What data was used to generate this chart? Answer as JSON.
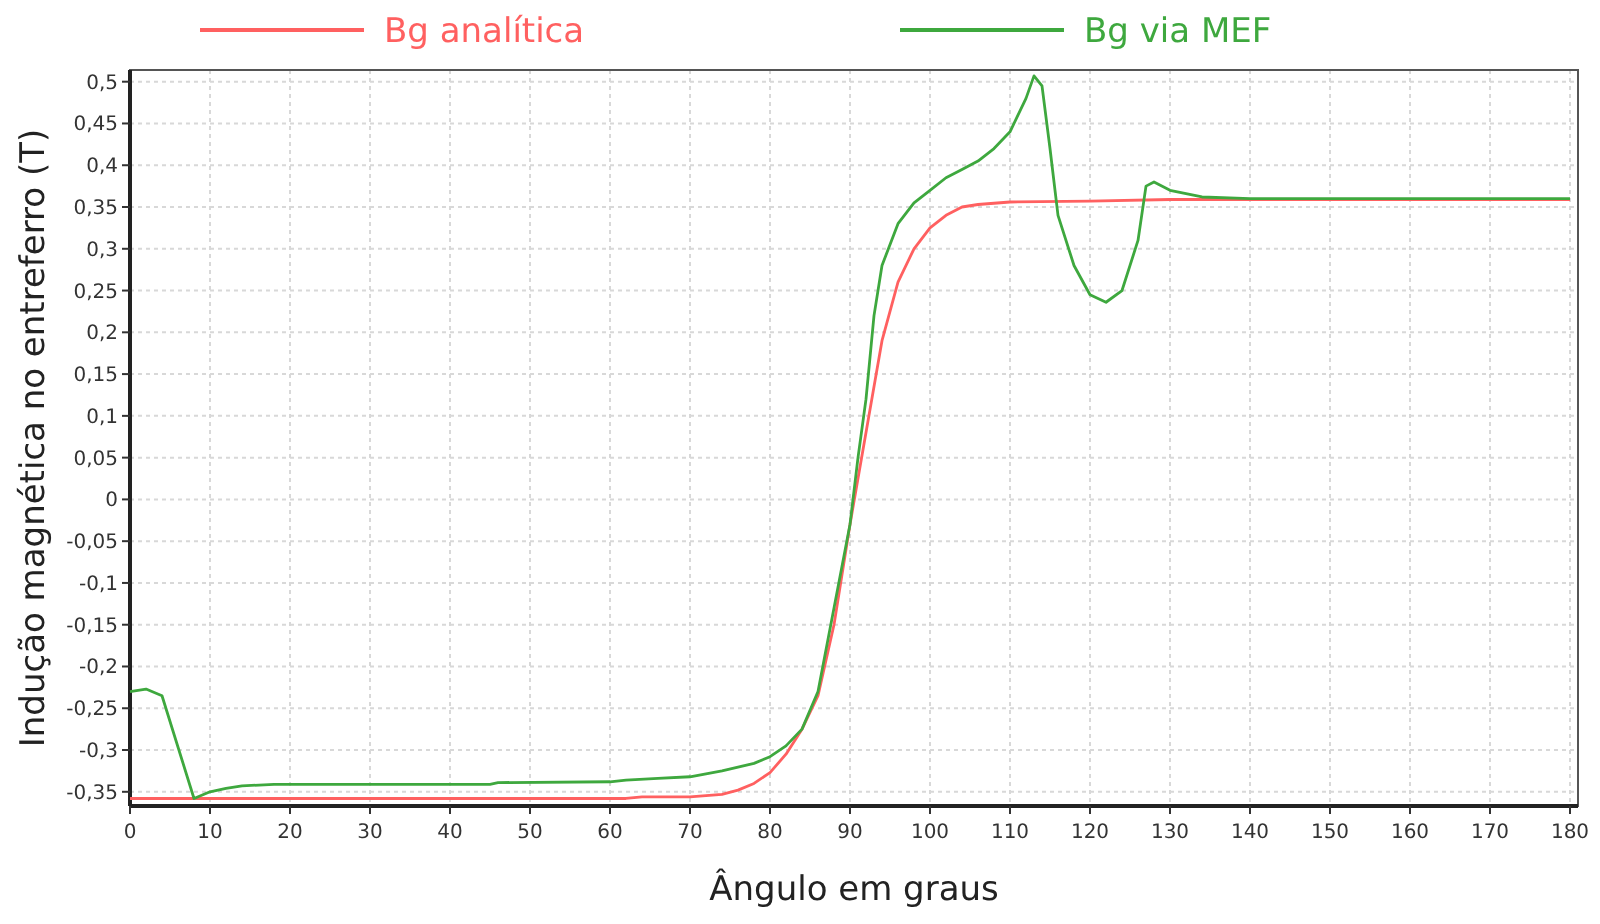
{
  "chart_data": {
    "type": "line",
    "xlabel": "Ângulo em graus",
    "ylabel": "Indução magnética no entreferro (T)",
    "legend": "top",
    "grid": true,
    "line_style": "solid",
    "marker": "none",
    "xlim": [
      0,
      181
    ],
    "xticks": [
      0,
      10,
      20,
      30,
      40,
      50,
      60,
      70,
      80,
      90,
      100,
      110,
      120,
      130,
      140,
      150,
      160,
      170,
      180
    ],
    "ylim": [
      -0.367,
      0.514
    ],
    "yticks": [
      {
        "value": -0.35,
        "label": "-0,35"
      },
      {
        "value": -0.3,
        "label": "-0,3"
      },
      {
        "value": -0.25,
        "label": "-0,25"
      },
      {
        "value": -0.2,
        "label": "-0,2"
      },
      {
        "value": -0.15,
        "label": "-0,15"
      },
      {
        "value": -0.1,
        "label": "-0,1"
      },
      {
        "value": -0.05,
        "label": "-0,05"
      },
      {
        "value": 0,
        "label": "0"
      },
      {
        "value": 0.05,
        "label": "0,05"
      },
      {
        "value": 0.1,
        "label": "0,1"
      },
      {
        "value": 0.15,
        "label": "0,15"
      },
      {
        "value": 0.2,
        "label": "0,2"
      },
      {
        "value": 0.25,
        "label": "0,25"
      },
      {
        "value": 0.3,
        "label": "0,3"
      },
      {
        "value": 0.35,
        "label": "0,35"
      },
      {
        "value": 0.4,
        "label": "0,4"
      },
      {
        "value": 0.45,
        "label": "0,45"
      },
      {
        "value": 0.5,
        "label": "0,5"
      }
    ],
    "series": [
      {
        "name": "Bg analítica",
        "color": "#ff6060",
        "x": [
          0,
          62,
          64,
          70,
          74,
          76,
          78,
          80,
          82,
          84,
          86,
          88,
          90,
          92,
          94,
          96,
          98,
          100,
          102,
          104,
          106,
          110,
          120,
          130,
          180
        ],
        "values": [
          -0.358,
          -0.358,
          -0.356,
          -0.356,
          -0.353,
          -0.348,
          -0.34,
          -0.327,
          -0.305,
          -0.275,
          -0.235,
          -0.15,
          -0.03,
          0.08,
          0.19,
          0.26,
          0.3,
          0.325,
          0.34,
          0.35,
          0.353,
          0.356,
          0.357,
          0.359,
          0.359
        ]
      },
      {
        "name": "Bg via MEF",
        "color": "#3ea83e",
        "x": [
          0,
          2,
          4,
          8,
          10,
          12,
          14,
          18,
          45,
          46,
          60,
          62,
          66,
          70,
          74,
          78,
          80,
          82,
          84,
          86,
          88,
          90,
          91,
          92,
          93,
          94,
          96,
          98,
          100,
          102,
          104,
          106,
          108,
          110,
          112,
          113,
          114,
          115,
          116,
          118,
          120,
          122,
          124,
          126,
          127,
          128,
          130,
          134,
          140,
          180
        ],
        "values": [
          -0.23,
          -0.227,
          -0.235,
          -0.358,
          -0.35,
          -0.346,
          -0.343,
          -0.341,
          -0.341,
          -0.339,
          -0.338,
          -0.336,
          -0.334,
          -0.332,
          -0.325,
          -0.316,
          -0.308,
          -0.295,
          -0.275,
          -0.23,
          -0.13,
          -0.03,
          0.05,
          0.12,
          0.22,
          0.28,
          0.33,
          0.355,
          0.37,
          0.385,
          0.395,
          0.405,
          0.42,
          0.44,
          0.48,
          0.507,
          0.495,
          0.42,
          0.34,
          0.28,
          0.245,
          0.236,
          0.25,
          0.31,
          0.375,
          0.38,
          0.37,
          0.362,
          0.36,
          0.36
        ]
      }
    ]
  }
}
